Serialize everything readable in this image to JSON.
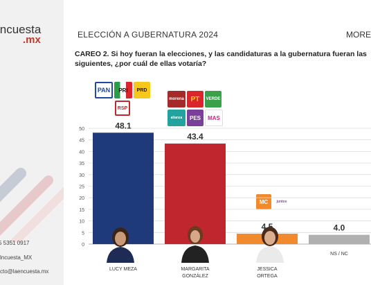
{
  "sidebar": {
    "brand_main": "lncuesta",
    "brand_sub": ".mx",
    "phone": "5 5351 0917",
    "twitter": "lncuesta_MX",
    "email": "cto@laencuesta.mx"
  },
  "header": {
    "title": "ELECCIÓN A GUBERNATURA 2024",
    "right": "MOREL"
  },
  "question": {
    "line1": "CAREO 2. Si hoy fueran la elecciones, y las candidaturas a la gubernatura fueran las",
    "line2": "siguientes, ¿por cuál de ellas votaría?"
  },
  "colors": {
    "lucy": "#1e3a7a",
    "margarita": "#c0262d",
    "jessica": "#f08a2c",
    "nsnc": "#b0b0b0",
    "accent": "#c0392b"
  },
  "party_logos": {
    "lucy": [
      "PAN",
      "PRI",
      "PRD",
      "RSP"
    ],
    "margarita": [
      "morena",
      "PT",
      "VERDE",
      "PES",
      "alianza",
      "MAS"
    ],
    "jessica": [
      "MC",
      "juntos"
    ]
  },
  "chart_data": {
    "type": "bar",
    "categories": [
      "LUCY MEZA",
      "MARGARITA GONZÁLEZ",
      "JESSICA ORTEGA",
      "NS / NC"
    ],
    "category_lines": [
      [
        "LUCY MEZA"
      ],
      [
        "MARGARITA",
        "GONZÁLEZ"
      ],
      [
        "JESSICA",
        "ORTEGA"
      ],
      [
        "NS / NC"
      ]
    ],
    "values": [
      48.1,
      43.4,
      4.5,
      4.0
    ],
    "value_labels": [
      "48.1",
      "43.4",
      "4.5",
      "4.0"
    ],
    "ylim": [
      0,
      50
    ],
    "yticks": [
      "0",
      "5",
      "10",
      "15",
      "20",
      "25",
      "30",
      "35",
      "40",
      "45",
      "50"
    ],
    "grid": true
  }
}
